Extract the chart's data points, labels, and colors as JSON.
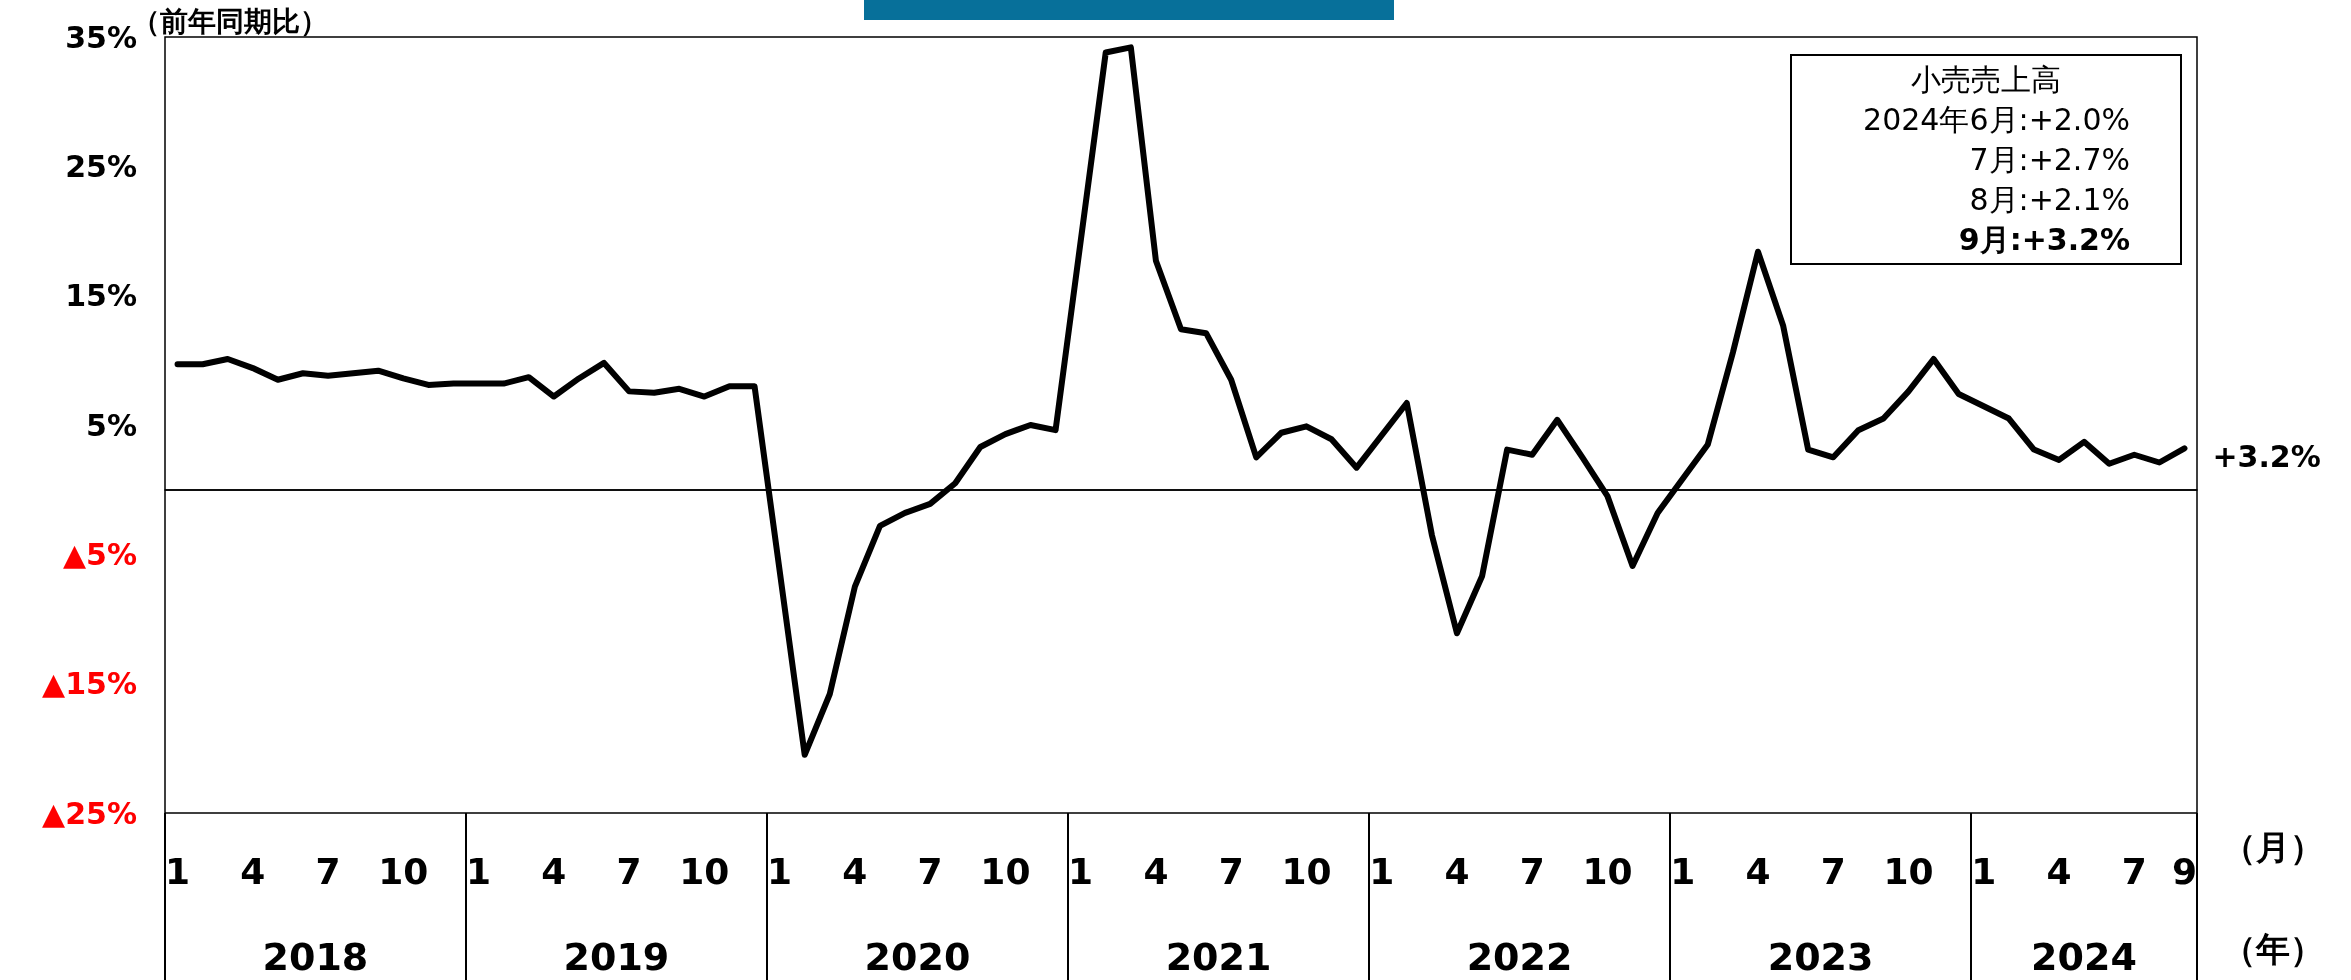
{
  "chart_data": {
    "type": "line",
    "ylabel": "（前年同期比）",
    "xlabel": "（月）",
    "categories": [
      "1",
      null,
      null,
      "4",
      null,
      null,
      "7",
      null,
      null,
      "10",
      null,
      null,
      "1",
      null,
      null,
      "4",
      null,
      null,
      "7",
      null,
      null,
      "10",
      null,
      null,
      "1",
      null,
      null,
      "4",
      null,
      null,
      "7",
      null,
      null,
      "10",
      null,
      null,
      "1",
      null,
      null,
      "4",
      null,
      null,
      "7",
      null,
      null,
      "10",
      null,
      null,
      "1",
      null,
      null,
      "4",
      null,
      null,
      "7",
      null,
      null,
      "10",
      null,
      null,
      "1",
      null,
      null,
      "4",
      null,
      null,
      "7",
      null,
      null,
      "10",
      null,
      null,
      "1",
      null,
      null,
      "4",
      null,
      null,
      "7",
      null,
      "9"
    ],
    "series": [
      {
        "color": "#000000",
        "values": [
          9.7,
          9.7,
          10.1,
          9.4,
          8.5,
          9.0,
          8.8,
          9.0,
          9.2,
          8.6,
          8.1,
          8.2,
          8.2,
          8.2,
          8.7,
          7.2,
          8.6,
          9.8,
          7.6,
          7.5,
          7.8,
          7.2,
          8.0,
          8.0,
          null,
          -20.5,
          -15.8,
          -7.5,
          -2.8,
          -1.8,
          -1.1,
          0.5,
          3.3,
          4.3,
          5.0,
          4.6,
          null,
          33.8,
          34.2,
          17.7,
          12.4,
          12.1,
          8.5,
          2.5,
          4.4,
          4.9,
          3.9,
          1.7,
          null,
          6.7,
          -3.5,
          -11.1,
          -6.7,
          3.1,
          2.7,
          5.4,
          2.5,
          -0.5,
          -5.9,
          -1.8,
          null,
          3.5,
          10.6,
          18.4,
          12.7,
          3.1,
          2.5,
          4.6,
          5.5,
          7.6,
          10.1,
          7.4,
          null,
          5.5,
          3.1,
          2.3,
          3.7,
          2.0,
          2.7,
          2.1,
          3.2
        ]
      }
    ],
    "ylim": [
      -25,
      35
    ],
    "yticks": [
      {
        "value": -25,
        "label": "▲25%"
      },
      {
        "value": -15,
        "label": "▲15%"
      },
      {
        "value": -5,
        "label": "▲5%"
      },
      {
        "value": 5,
        "label": "5%"
      },
      {
        "value": 15,
        "label": "15%"
      },
      {
        "value": 25,
        "label": "25%"
      },
      {
        "value": 35,
        "label": "35%"
      }
    ],
    "ref_lines": [
      {
        "axis": "y",
        "value": 0,
        "color": "#000000"
      }
    ],
    "marker": "none",
    "line_style": "solid",
    "annotations": [
      "2018",
      "2019",
      "2020",
      "2021",
      "2022",
      "2023",
      "2024",
      "（年）",
      "小売売上高\n2024年6月:+2.0%\n7月:+2.7%\n8月:+2.1%\n9月:+3.2%",
      {
        "text": "+3.2%",
        "x": "9",
        "y": 3.2
      }
    ]
  }
}
